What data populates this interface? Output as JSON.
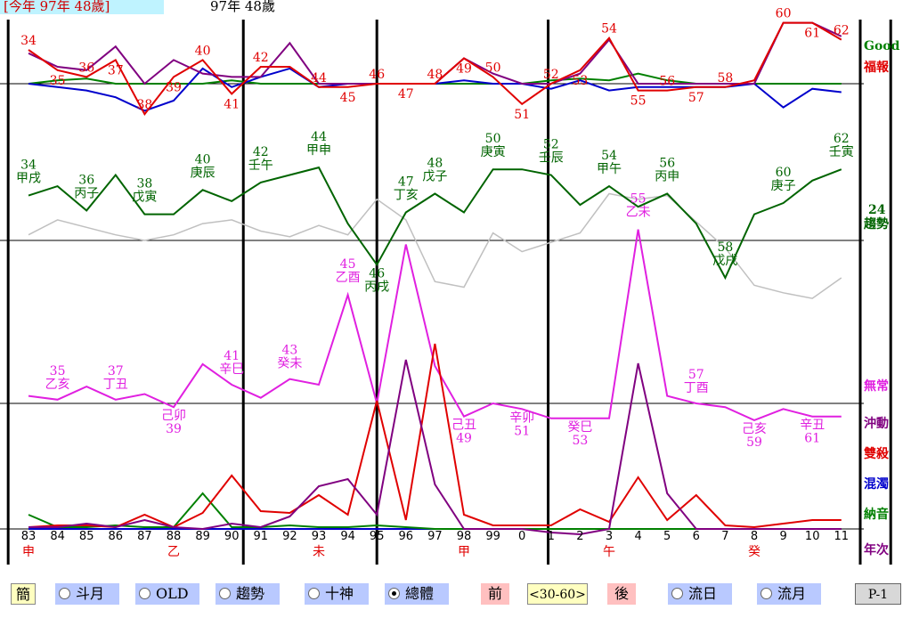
{
  "header": {
    "this_year": "[今年 97年 48歲]",
    "age_label": "97年 48歲"
  },
  "colors": {
    "good": "#008000",
    "fubao": "#e00000",
    "grey": "#c0c0c0",
    "trend": "#006400",
    "wuchang": "#e020e0",
    "chongdong": "#800080",
    "shuangsha": "#e00000",
    "hunzhuo": "#0000cc",
    "nayin": "#008000",
    "blue": "#0000cc"
  },
  "right_labels": {
    "good": "Good",
    "fubao": "福報",
    "num24": "24",
    "qushi": "趨勢",
    "wuchang": "無常",
    "chongdong": "沖動",
    "shuangsha": "雙殺",
    "hunzhuo": "混濁",
    "nayin": "納音",
    "nianci": "年次"
  },
  "chart_data": {
    "type": "line",
    "x_years": [
      "83",
      "84",
      "85",
      "86",
      "87",
      "88",
      "89",
      "90",
      "91",
      "92",
      "93",
      "94",
      "95",
      "96",
      "97",
      "98",
      "99",
      "0",
      "1",
      "2",
      "3",
      "4",
      "5",
      "6",
      "7",
      "8",
      "9",
      "10",
      "11"
    ],
    "branch_labels": [
      {
        "after_index": 0,
        "text": "申"
      },
      {
        "after_index": 5,
        "text": "乙"
      },
      {
        "after_index": 10,
        "text": "未"
      },
      {
        "after_index": 15,
        "text": "甲"
      },
      {
        "after_index": 20,
        "text": "午"
      },
      {
        "after_index": 25,
        "text": "癸"
      }
    ],
    "luck_dividers_at_index": [
      -0.7,
      7.4,
      12,
      17.9,
      29.7
    ],
    "panels": {
      "fubao": {
        "name": "福報",
        "baseline": 0,
        "red": [
          20,
          8,
          4,
          14,
          -18,
          4,
          14,
          -6,
          10,
          10,
          -2,
          -2,
          0,
          0,
          0,
          15,
          4,
          -12,
          0,
          8,
          27,
          -4,
          -4,
          -2,
          -2,
          2,
          36,
          36,
          26
        ],
        "purple": [
          18,
          10,
          8,
          22,
          0,
          14,
          6,
          4,
          4,
          24,
          0,
          0,
          0,
          0,
          0,
          15,
          6,
          0,
          0,
          6,
          26,
          0,
          0,
          0,
          0,
          0,
          36,
          36,
          28
        ],
        "blue": [
          0,
          -2,
          -4,
          -8,
          -16,
          -10,
          9,
          -2,
          4,
          9,
          -2,
          0,
          0,
          0,
          0,
          2,
          0,
          0,
          -3,
          2,
          -4,
          -2,
          -2,
          -2,
          -2,
          0,
          -14,
          -3,
          -5
        ],
        "green": [
          0,
          2,
          3,
          0,
          0,
          0,
          0,
          2,
          0,
          0,
          0,
          0,
          0,
          0,
          0,
          0,
          0,
          0,
          2,
          3,
          2,
          6,
          2,
          0,
          0,
          0,
          0,
          0,
          0
        ],
        "point_labels": [
          {
            "i": 0,
            "text": "34"
          },
          {
            "i": 1,
            "text": "35"
          },
          {
            "i": 2,
            "text": "36"
          },
          {
            "i": 3,
            "text": "37"
          },
          {
            "i": 4,
            "text": "38"
          },
          {
            "i": 5,
            "text": "39"
          },
          {
            "i": 6,
            "text": "40"
          },
          {
            "i": 7,
            "text": "41"
          },
          {
            "i": 8,
            "text": "42"
          },
          {
            "i": 10,
            "text": "44"
          },
          {
            "i": 11,
            "text": "45"
          },
          {
            "i": 12,
            "text": "46"
          },
          {
            "i": 13,
            "text": "47"
          },
          {
            "i": 14,
            "text": "48"
          },
          {
            "i": 15,
            "text": "49"
          },
          {
            "i": 16,
            "text": "50"
          },
          {
            "i": 17,
            "text": "51"
          },
          {
            "i": 18,
            "text": "52"
          },
          {
            "i": 19,
            "text": "53"
          },
          {
            "i": 20,
            "text": "54"
          },
          {
            "i": 21,
            "text": "55"
          },
          {
            "i": 22,
            "text": "56"
          },
          {
            "i": 23,
            "text": "57"
          },
          {
            "i": 24,
            "text": "58"
          },
          {
            "i": 26,
            "text": "60"
          },
          {
            "i": 27,
            "text": "61"
          },
          {
            "i": 28,
            "text": "62"
          }
        ]
      },
      "qushi": {
        "name": "趨勢",
        "baseline": 0,
        "green": [
          48,
          58,
          32,
          70,
          28,
          28,
          54,
          42,
          62,
          70,
          78,
          18,
          -26,
          30,
          50,
          30,
          76,
          76,
          70,
          38,
          58,
          36,
          50,
          18,
          -40,
          28,
          40,
          64,
          76
        ],
        "grey": [
          6,
          22,
          14,
          6,
          0,
          6,
          18,
          22,
          10,
          4,
          16,
          6,
          44,
          22,
          -44,
          -50,
          8,
          -12,
          -2,
          8,
          50,
          44,
          48,
          20,
          -8,
          -48,
          -56,
          -62,
          -40
        ],
        "point_labels": [
          {
            "i": 0,
            "n": "34",
            "g": "甲戌"
          },
          {
            "i": 2,
            "n": "36",
            "g": "丙子"
          },
          {
            "i": 4,
            "n": "38",
            "g": "戊寅"
          },
          {
            "i": 6,
            "n": "40",
            "g": "庚辰"
          },
          {
            "i": 8,
            "n": "42",
            "g": "壬午"
          },
          {
            "i": 10,
            "n": "44",
            "g": "甲申"
          },
          {
            "i": 12,
            "n": "46",
            "g": "丙戌"
          },
          {
            "i": 13,
            "n": "47",
            "g": "丁亥"
          },
          {
            "i": 14,
            "n": "48",
            "g": "戊子"
          },
          {
            "i": 16,
            "n": "50",
            "g": "庚寅"
          },
          {
            "i": 18,
            "n": "52",
            "g": "壬辰"
          },
          {
            "i": 20,
            "n": "54",
            "g": "甲午"
          },
          {
            "i": 22,
            "n": "56",
            "g": "丙申"
          },
          {
            "i": 24,
            "n": "58",
            "g": "戊戌"
          },
          {
            "i": 26,
            "n": "60",
            "g": "庚子"
          },
          {
            "i": 28,
            "n": "62",
            "g": "壬寅"
          }
        ],
        "extra_labels": [
          {
            "i": 11,
            "n": "45",
            "g": "乙酉"
          },
          {
            "i": 21,
            "n": "55",
            "g": "乙未"
          }
        ]
      },
      "wuchang": {
        "name": "無常",
        "baseline": 0,
        "magenta": [
          8,
          4,
          18,
          4,
          10,
          -4,
          42,
          20,
          6,
          26,
          20,
          116,
          0,
          170,
          40,
          -14,
          0,
          -6,
          -16,
          -16,
          -16,
          186,
          8,
          0,
          -4,
          -18,
          -6,
          -14,
          -14
        ],
        "point_labels": [
          {
            "i": 1,
            "n": "35",
            "g": "乙亥"
          },
          {
            "i": 3,
            "n": "37",
            "g": "丁丑"
          },
          {
            "i": 5,
            "n": "39",
            "g": "己卯"
          },
          {
            "i": 7,
            "n": "41",
            "g": "辛巳"
          },
          {
            "i": 9,
            "n": "43",
            "g": "癸未"
          },
          {
            "i": 15,
            "n": "49",
            "g": "己丑"
          },
          {
            "i": 17,
            "n": "51",
            "g": "辛卯"
          },
          {
            "i": 19,
            "n": "53",
            "g": "癸巳"
          },
          {
            "i": 23,
            "n": "57",
            "g": "丁酉"
          },
          {
            "i": 25,
            "n": "59",
            "g": "己亥"
          },
          {
            "i": 27,
            "n": "61",
            "g": "辛丑"
          }
        ]
      },
      "lower": {
        "name": "沖動/雙殺/混濁/納音",
        "baseline": 0,
        "purple": [
          2,
          2,
          6,
          2,
          10,
          2,
          0,
          6,
          2,
          14,
          48,
          56,
          16,
          190,
          50,
          0,
          0,
          0,
          -4,
          -6,
          0,
          186,
          40,
          0,
          0,
          0,
          0,
          0,
          0
        ],
        "red": [
          2,
          4,
          4,
          2,
          16,
          2,
          18,
          60,
          20,
          18,
          38,
          16,
          144,
          10,
          208,
          16,
          4,
          4,
          4,
          22,
          8,
          58,
          10,
          38,
          4,
          2,
          6,
          10,
          10
        ],
        "green": [
          16,
          2,
          2,
          4,
          2,
          2,
          40,
          2,
          2,
          4,
          2,
          2,
          4,
          2,
          0,
          0,
          0,
          0,
          0,
          0,
          0,
          0,
          0,
          0,
          0,
          0,
          0,
          0,
          0
        ],
        "blue": [
          0,
          0,
          0,
          0,
          0,
          0,
          0,
          0,
          0,
          0,
          0,
          0,
          0,
          0,
          0,
          0,
          0,
          0,
          0,
          0,
          0,
          0,
          0,
          0,
          0,
          0,
          0,
          0,
          0
        ]
      }
    }
  },
  "controls": {
    "jian": "簡",
    "douyue": "斗月",
    "old": "OLD",
    "qushi": "趨勢",
    "shishen": "十神",
    "zongti": "總體",
    "qian": "前",
    "range": "<30-60>",
    "hou": "後",
    "liuri": "流日",
    "liuyue": "流月",
    "page": "P-1"
  }
}
